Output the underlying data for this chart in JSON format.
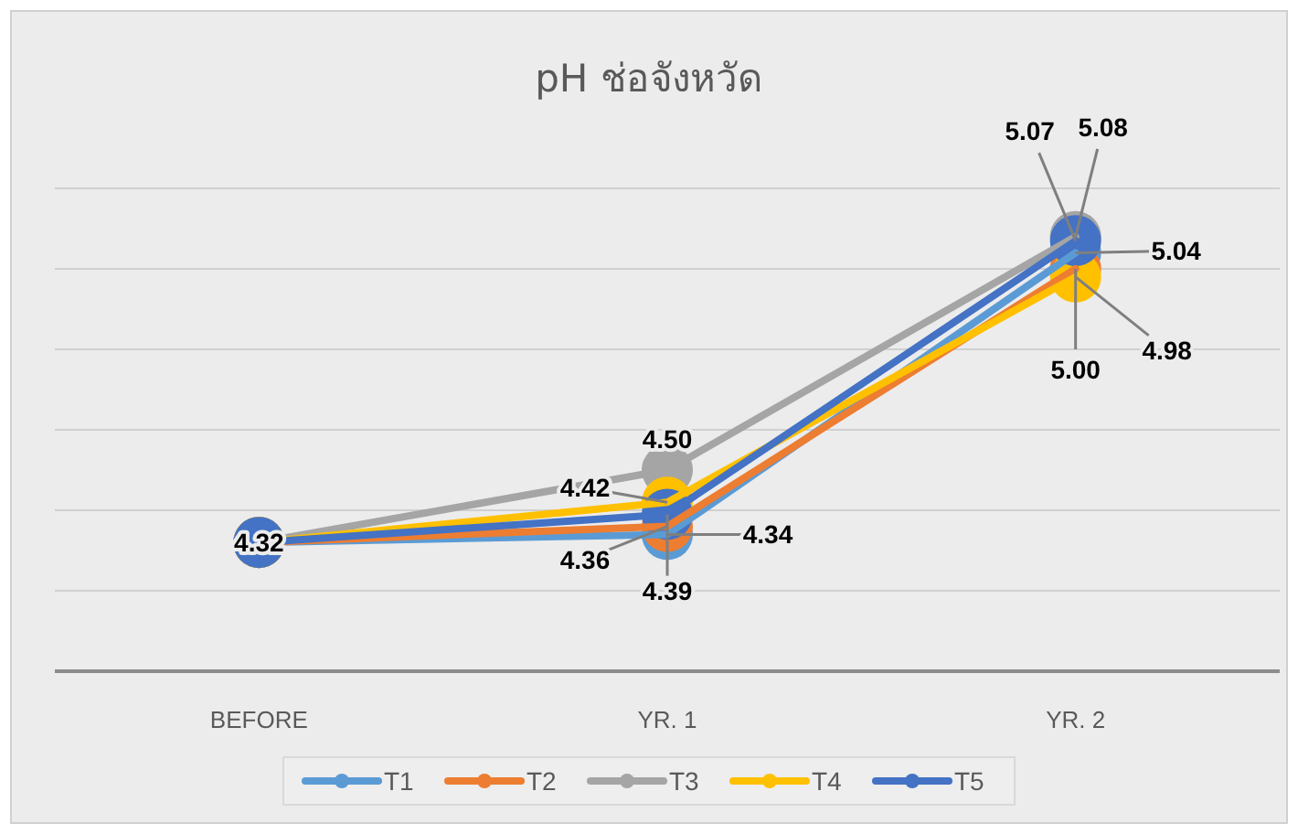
{
  "chart_data": {
    "type": "line",
    "title": "pH ช่อจังหวัด",
    "categories": [
      "BEFORE",
      "YR. 1",
      "YR. 2"
    ],
    "series": [
      {
        "name": "T1",
        "color": "#5b9bd5",
        "values": [
          4.32,
          4.34,
          5.04
        ],
        "value_labels": [
          null,
          "4.34",
          "5.04"
        ]
      },
      {
        "name": "T2",
        "color": "#ed7d31",
        "values": [
          4.32,
          4.36,
          5.0
        ],
        "value_labels": [
          null,
          "4.36",
          "5.00"
        ]
      },
      {
        "name": "T3",
        "color": "#a5a5a5",
        "values": [
          4.32,
          4.5,
          5.08
        ],
        "value_labels": [
          null,
          "4.50",
          "5.08"
        ]
      },
      {
        "name": "T4",
        "color": "#ffc000",
        "values": [
          4.32,
          4.42,
          4.98
        ],
        "value_labels": [
          null,
          "4.42",
          "4.98"
        ]
      },
      {
        "name": "T5",
        "color": "#4472c4",
        "values": [
          4.32,
          4.39,
          5.07
        ],
        "value_labels": [
          "4.32",
          "4.39",
          "5.07"
        ]
      }
    ],
    "ylim": [
      4.0,
      5.2
    ],
    "yticks": [
      {
        "value": 4.2,
        "label": null
      },
      {
        "value": 4.4,
        "label": null
      },
      {
        "value": 4.6,
        "label": null
      },
      {
        "value": 4.8,
        "label": null
      },
      {
        "value": 5.0,
        "label": null
      },
      {
        "value": 5.2,
        "label": null
      }
    ],
    "tick_labels": "x",
    "grid": "y",
    "legend": "bottom",
    "marker": "circle",
    "line_style": "solid"
  }
}
